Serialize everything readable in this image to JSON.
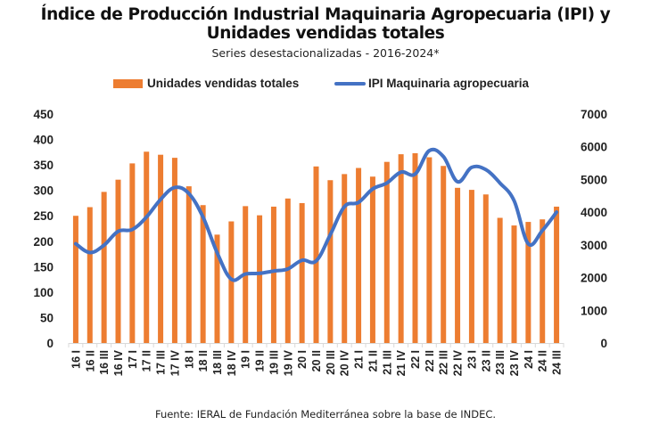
{
  "chart_data": {
    "type": "bar+line",
    "title": "Índice de Producción Industrial Maquinaria Agropecuaria (IPI) y Unidades vendidas totales",
    "subtitle": "Series desestacionalizadas - 2016-2024*",
    "source": "Fuente: IERAL de Fundación Mediterránea sobre la base de INDEC.",
    "legend_position": "top-center",
    "grid": false,
    "categories": [
      "16 I",
      "16 II",
      "16 III",
      "16 IV",
      "17 I",
      "17 II",
      "17 III",
      "17 IV",
      "18 I",
      "18 II",
      "18 III",
      "18 IV",
      "19 I",
      "19 II",
      "19 III",
      "19 IV",
      "20 I",
      "20 II",
      "20 III",
      "20 IV",
      "21 I",
      "21 II",
      "21 III",
      "21 IV",
      "22 I",
      "22 II",
      "22 III",
      "22 IV",
      "23 I",
      "23 II",
      "23 III",
      "23 IV",
      "24 I",
      "24 II",
      "24 III"
    ],
    "series": [
      {
        "name": "Unidades vendidas totales",
        "type": "bar",
        "axis": "left",
        "color": "#ED7D31",
        "values": [
          250,
          267,
          297,
          321,
          353,
          376,
          370,
          364,
          308,
          271,
          213,
          239,
          269,
          251,
          268,
          284,
          275,
          347,
          320,
          332,
          344,
          327,
          356,
          371,
          373,
          365,
          348,
          305,
          301,
          292,
          246,
          231,
          238,
          243,
          268
        ]
      },
      {
        "name": "IPI Maquinaria agropecuaria",
        "type": "line",
        "axis": "right",
        "color": "#4472C4",
        "values": [
          3035,
          2765,
          2990,
          3415,
          3470,
          3850,
          4390,
          4755,
          4570,
          3850,
          2760,
          1950,
          2110,
          2130,
          2200,
          2265,
          2530,
          2510,
          3310,
          4170,
          4300,
          4710,
          4890,
          5225,
          5165,
          5880,
          5700,
          4930,
          5370,
          5300,
          4890,
          4350,
          3035,
          3440,
          4000
        ]
      }
    ],
    "y_left": {
      "ylim": [
        0,
        450
      ],
      "ticks": [
        0,
        50,
        100,
        150,
        200,
        250,
        300,
        350,
        400,
        450
      ]
    },
    "y_right": {
      "ylim": [
        0,
        7000
      ],
      "ticks": [
        0,
        1000,
        2000,
        3000,
        4000,
        5000,
        6000,
        7000
      ]
    },
    "xlabel": "",
    "ylabel": ""
  }
}
